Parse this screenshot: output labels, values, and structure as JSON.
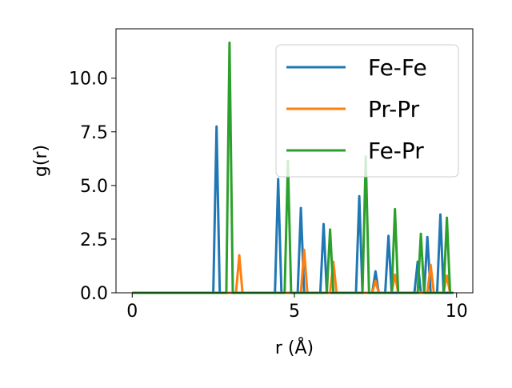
{
  "chart_data": {
    "type": "line",
    "xlabel": "r (Å)",
    "ylabel": "g(r)",
    "xlim": [
      -0.5,
      10.5
    ],
    "ylim": [
      0,
      12.3
    ],
    "xticks": [
      0,
      5,
      10
    ],
    "xtick_labels": [
      "0",
      "5",
      "10"
    ],
    "yticks": [
      0,
      2.5,
      5,
      7.5,
      10
    ],
    "ytick_labels": [
      "0.0",
      "2.5",
      "5.0",
      "7.5",
      "10.0"
    ],
    "grid": false,
    "legend_position": "top-right",
    "series": [
      {
        "name": "Fe-Fe",
        "color": "#1f77b4",
        "x": [
          0,
          2.5,
          2.6,
          2.7,
          4.4,
          4.5,
          4.6,
          5.1,
          5.2,
          5.3,
          5.8,
          5.9,
          6.0,
          6.9,
          7.0,
          7.1,
          7.4,
          7.5,
          7.6,
          7.8,
          7.9,
          8.0,
          8.7,
          8.8,
          8.9,
          9.0,
          9.1,
          9.2,
          9.4,
          9.5,
          9.6,
          9.9
        ],
        "y": [
          0,
          0,
          7.75,
          0,
          0,
          5.3,
          0,
          0,
          3.95,
          0,
          0,
          3.2,
          0,
          0,
          4.5,
          0,
          0,
          1.0,
          0,
          0,
          2.65,
          0,
          0,
          1.45,
          0,
          0,
          2.6,
          0,
          0,
          3.65,
          0,
          0
        ]
      },
      {
        "name": "Pr-Pr",
        "color": "#ff7f0e",
        "x": [
          0,
          3.2,
          3.3,
          3.4,
          5.2,
          5.3,
          5.4,
          6.1,
          6.2,
          6.3,
          7.4,
          7.5,
          7.6,
          8.0,
          8.1,
          8.2,
          9.1,
          9.2,
          9.3,
          9.6,
          9.7,
          9.8,
          9.9
        ],
        "y": [
          0,
          0,
          1.75,
          0,
          0,
          2.0,
          0,
          0,
          1.45,
          0,
          0,
          0.55,
          0,
          0,
          0.85,
          0,
          0,
          1.3,
          0,
          0,
          0.8,
          0,
          0
        ]
      },
      {
        "name": "Fe-Pr",
        "color": "#2ca02c",
        "x": [
          0,
          2.9,
          3.0,
          3.1,
          4.7,
          4.8,
          4.9,
          6.0,
          6.1,
          6.2,
          7.1,
          7.2,
          7.3,
          8.0,
          8.1,
          8.2,
          8.8,
          8.9,
          9.0,
          9.6,
          9.7,
          9.8,
          9.9
        ],
        "y": [
          0,
          0,
          11.65,
          0,
          0,
          6.15,
          0,
          0,
          2.95,
          0,
          0,
          6.35,
          0,
          0,
          3.9,
          0,
          0,
          2.75,
          0,
          0,
          3.5,
          0,
          0
        ]
      }
    ]
  }
}
